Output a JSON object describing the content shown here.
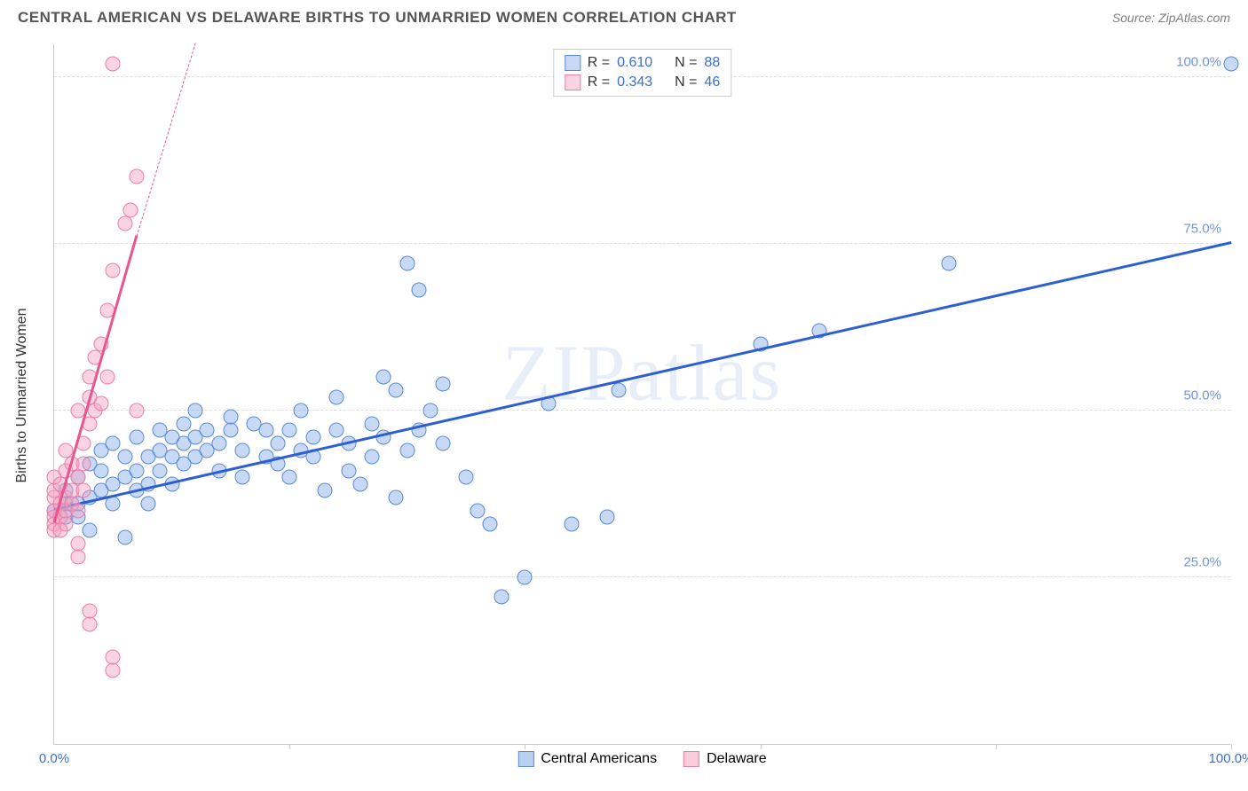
{
  "header": {
    "title": "CENTRAL AMERICAN VS DELAWARE BIRTHS TO UNMARRIED WOMEN CORRELATION CHART",
    "source": "Source: ZipAtlas.com"
  },
  "watermark": "ZIPatlas",
  "chart": {
    "type": "scatter",
    "y_axis_title": "Births to Unmarried Women",
    "xlim": [
      0,
      100
    ],
    "ylim": [
      0,
      105
    ],
    "y_ticks": [
      {
        "v": 25,
        "label": "25.0%",
        "color": "#6a95e0"
      },
      {
        "v": 50,
        "label": "50.0%",
        "color": "#6a95e0"
      },
      {
        "v": 75,
        "label": "75.0%",
        "color": "#6a95e0"
      },
      {
        "v": 100,
        "label": "100.0%",
        "color": "#6a95e0"
      }
    ],
    "x_ticks": [
      {
        "v": 0,
        "label": "0.0%",
        "color": "#3b6fd6"
      },
      {
        "v": 20,
        "label": ""
      },
      {
        "v": 40,
        "label": ""
      },
      {
        "v": 60,
        "label": ""
      },
      {
        "v": 80,
        "label": ""
      },
      {
        "v": 100,
        "label": "100.0%",
        "color": "#3b6fd6"
      }
    ],
    "grid_color": "#dddddd",
    "axis_color": "#cccccc",
    "background_color": "#ffffff",
    "marker_radius": 8.5,
    "marker_stroke_width": 1.5,
    "series": [
      {
        "name": "Central Americans",
        "fill": "rgba(130,170,230,0.45)",
        "stroke": "#5a8ad6",
        "trend_color": "#2d5fd0",
        "trend": {
          "x1": 0,
          "y1": 35,
          "x2": 100,
          "y2": 75
        },
        "R_label": "R =",
        "R": "0.610",
        "N_label": "N =",
        "N": "88",
        "points": [
          [
            0,
            35
          ],
          [
            1,
            36
          ],
          [
            1,
            34
          ],
          [
            1,
            38
          ],
          [
            2,
            36
          ],
          [
            2,
            40
          ],
          [
            2,
            34
          ],
          [
            3,
            32
          ],
          [
            3,
            37
          ],
          [
            3,
            42
          ],
          [
            4,
            44
          ],
          [
            4,
            41
          ],
          [
            4,
            38
          ],
          [
            5,
            39
          ],
          [
            5,
            45
          ],
          [
            5,
            36
          ],
          [
            6,
            40
          ],
          [
            6,
            43
          ],
          [
            6,
            31
          ],
          [
            7,
            41
          ],
          [
            7,
            38
          ],
          [
            7,
            46
          ],
          [
            8,
            43
          ],
          [
            8,
            39
          ],
          [
            8,
            36
          ],
          [
            9,
            44
          ],
          [
            9,
            47
          ],
          [
            9,
            41
          ],
          [
            10,
            43
          ],
          [
            10,
            46
          ],
          [
            10,
            39
          ],
          [
            11,
            48
          ],
          [
            11,
            45
          ],
          [
            11,
            42
          ],
          [
            12,
            46
          ],
          [
            12,
            43
          ],
          [
            12,
            50
          ],
          [
            13,
            47
          ],
          [
            13,
            44
          ],
          [
            14,
            45
          ],
          [
            14,
            41
          ],
          [
            15,
            47
          ],
          [
            15,
            49
          ],
          [
            16,
            44
          ],
          [
            16,
            40
          ],
          [
            17,
            48
          ],
          [
            18,
            43
          ],
          [
            18,
            47
          ],
          [
            19,
            45
          ],
          [
            19,
            42
          ],
          [
            20,
            47
          ],
          [
            20,
            40
          ],
          [
            21,
            44
          ],
          [
            21,
            50
          ],
          [
            22,
            46
          ],
          [
            22,
            43
          ],
          [
            23,
            38
          ],
          [
            24,
            47
          ],
          [
            24,
            52
          ],
          [
            25,
            45
          ],
          [
            25,
            41
          ],
          [
            26,
            39
          ],
          [
            27,
            43
          ],
          [
            27,
            48
          ],
          [
            28,
            46
          ],
          [
            28,
            55
          ],
          [
            29,
            53
          ],
          [
            29,
            37
          ],
          [
            30,
            44
          ],
          [
            30,
            72
          ],
          [
            31,
            47
          ],
          [
            31,
            68
          ],
          [
            32,
            50
          ],
          [
            33,
            54
          ],
          [
            33,
            45
          ],
          [
            35,
            40
          ],
          [
            36,
            35
          ],
          [
            37,
            33
          ],
          [
            38,
            22
          ],
          [
            40,
            25
          ],
          [
            42,
            51
          ],
          [
            44,
            33
          ],
          [
            47,
            34
          ],
          [
            48,
            53
          ],
          [
            60,
            60
          ],
          [
            65,
            62
          ],
          [
            76,
            72
          ],
          [
            100,
            102
          ]
        ]
      },
      {
        "name": "Delaware",
        "fill": "rgba(245,160,190,0.45)",
        "stroke": "#e87fa8",
        "trend_color": "#e85590",
        "trend": {
          "x1": 0,
          "y1": 33,
          "x2": 7,
          "y2": 76
        },
        "trend_dash": {
          "x1": 7,
          "y1": 76,
          "x2": 12,
          "y2": 105
        },
        "R_label": "R =",
        "R": "0.343",
        "N_label": "N =",
        "N": "46",
        "points": [
          [
            0,
            35
          ],
          [
            0,
            37
          ],
          [
            0,
            34
          ],
          [
            0,
            38
          ],
          [
            0,
            33
          ],
          [
            0,
            40
          ],
          [
            0,
            32
          ],
          [
            0.5,
            36
          ],
          [
            0.5,
            39
          ],
          [
            0.5,
            34
          ],
          [
            1,
            41
          ],
          [
            1,
            37
          ],
          [
            1,
            35
          ],
          [
            1,
            44
          ],
          [
            1,
            33
          ],
          [
            1.5,
            38
          ],
          [
            1.5,
            42
          ],
          [
            1.5,
            36
          ],
          [
            2,
            40
          ],
          [
            2,
            50
          ],
          [
            2,
            35
          ],
          [
            2,
            30
          ],
          [
            2,
            28
          ],
          [
            2.5,
            45
          ],
          [
            2.5,
            38
          ],
          [
            2.5,
            42
          ],
          [
            3,
            52
          ],
          [
            3,
            48
          ],
          [
            3,
            55
          ],
          [
            3,
            18
          ],
          [
            3,
            20
          ],
          [
            3.5,
            58
          ],
          [
            3.5,
            50
          ],
          [
            4,
            60
          ],
          [
            4,
            51
          ],
          [
            4.5,
            65
          ],
          [
            4.5,
            55
          ],
          [
            5,
            11
          ],
          [
            5,
            13
          ],
          [
            5,
            71
          ],
          [
            6,
            78
          ],
          [
            6.5,
            80
          ],
          [
            7,
            50
          ],
          [
            7,
            85
          ],
          [
            5,
            102
          ],
          [
            0.5,
            32
          ]
        ]
      }
    ]
  },
  "legend_bottom": {
    "items": [
      {
        "label": "Central Americans",
        "fill": "rgba(130,170,230,0.55)",
        "stroke": "#5a8ad6"
      },
      {
        "label": "Delaware",
        "fill": "rgba(245,160,190,0.55)",
        "stroke": "#e87fa8"
      }
    ]
  }
}
